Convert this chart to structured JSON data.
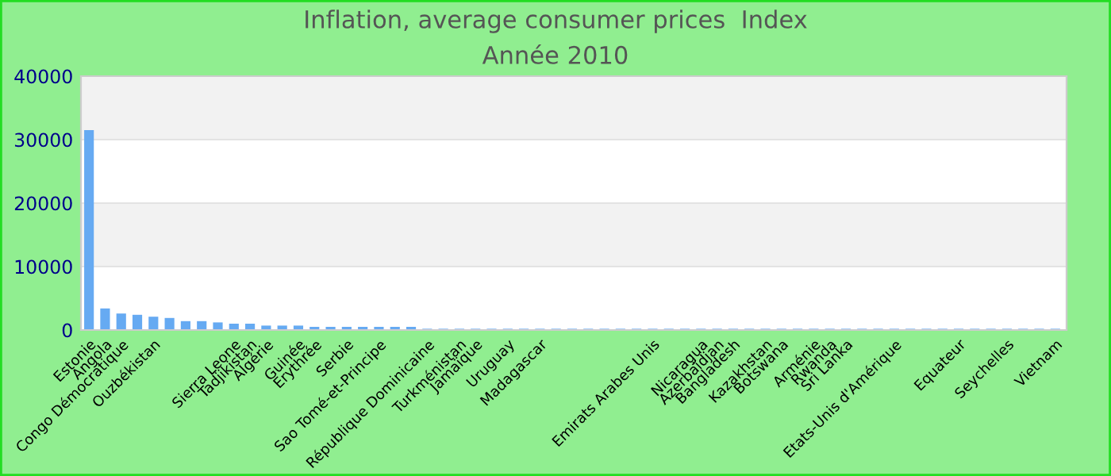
{
  "chart_data": {
    "type": "bar",
    "title": "Inflation, average consumer prices  Index",
    "subtitle": "Année 2010",
    "categories": [
      "Estonie",
      "Angola",
      "Congo Démocratique",
      null,
      "Ouzbékistan",
      null,
      null,
      null,
      null,
      "Sierra Leone",
      "Tadjikistan",
      "Algérie",
      null,
      "Guinée",
      "Erythrée",
      null,
      "Serbie",
      null,
      "Sao Tomé-et-Principe",
      null,
      null,
      "République Dominicaine",
      null,
      "Turkménistan",
      "Jamaïque",
      null,
      "Uruguay",
      null,
      "Madagascar",
      null,
      null,
      null,
      null,
      null,
      null,
      "Emirats Arabes Unis",
      null,
      null,
      "Nicaragua",
      "Azerbaïdjan",
      "Bangladesh",
      null,
      "Kazakhstan",
      "Botswana",
      null,
      "Arménie",
      "Rwanda",
      "Sri Lanka",
      null,
      null,
      "Etats-Unis d'Amérique",
      null,
      null,
      null,
      "Equateur",
      null,
      null,
      "Seychelles",
      null,
      null,
      "Vietnam"
    ],
    "values": [
      31500,
      3400,
      2600,
      2400,
      2100,
      1900,
      1400,
      1400,
      1200,
      1000,
      1000,
      700,
      700,
      700,
      500,
      500,
      500,
      500,
      500,
      500,
      500,
      200,
      200,
      200,
      200,
      200,
      200,
      200,
      200,
      200,
      200,
      200,
      200,
      200,
      200,
      200,
      200,
      200,
      200,
      200,
      200,
      200,
      200,
      200,
      200,
      200,
      200,
      200,
      200,
      200,
      200,
      200,
      200,
      200,
      200,
      200,
      200,
      200,
      200,
      200,
      200
    ],
    "color": "#66aaf2",
    "ylim": [
      0,
      40000
    ],
    "yticks": [
      0,
      10000,
      20000,
      30000,
      40000
    ],
    "grid": "y"
  }
}
